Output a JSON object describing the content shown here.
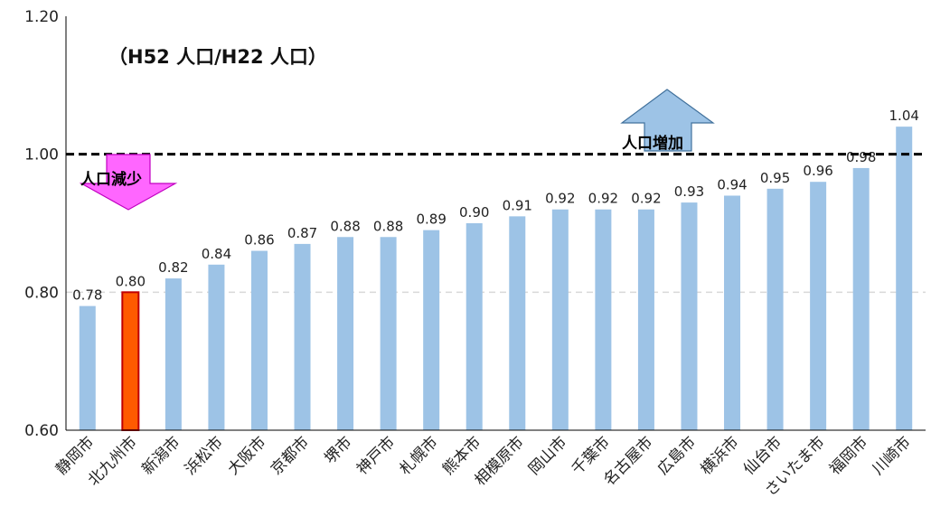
{
  "chart_data": {
    "type": "bar",
    "subtitle": "（H52 人口/H22 人口）",
    "categories": [
      "静岡市",
      "北九州市",
      "新潟市",
      "浜松市",
      "大阪市",
      "京都市",
      "堺市",
      "神戸市",
      "札幌市",
      "熊本市",
      "相模原市",
      "岡山市",
      "千葉市",
      "名古屋市",
      "広島市",
      "横浜市",
      "仙台市",
      "さいたま市",
      "福岡市",
      "川崎市"
    ],
    "values": [
      0.78,
      0.8,
      0.82,
      0.84,
      0.86,
      0.87,
      0.88,
      0.88,
      0.89,
      0.9,
      0.91,
      0.92,
      0.92,
      0.92,
      0.93,
      0.94,
      0.95,
      0.96,
      0.98,
      1.04
    ],
    "value_labels": [
      "0.78",
      "0.80",
      "0.82",
      "0.84",
      "0.86",
      "0.87",
      "0.88",
      "0.88",
      "0.89",
      "0.90",
      "0.91",
      "0.92",
      "0.92",
      "0.92",
      "0.93",
      "0.94",
      "0.95",
      "0.96",
      "0.98",
      "1.04"
    ],
    "highlight_index": 1,
    "ylim": [
      0.6,
      1.2
    ],
    "yticks": [
      0.6,
      0.8,
      1.0,
      1.2
    ],
    "ytick_labels": [
      "0.60",
      "0.80",
      "1.00",
      "1.20"
    ],
    "reference_line": {
      "value": 1.0,
      "style": "dashed"
    },
    "annotations": {
      "increase": "人口増加",
      "decrease": "人口減少"
    },
    "colors": {
      "bar": "#9dc3e6",
      "highlight_bar": "#ff5a00",
      "highlight_border": "#c00000",
      "increase_arrow": "#9dc3e6",
      "decrease_arrow": "#ff66ff",
      "reference_line": "#000000",
      "gridline": "#d9d9d9"
    }
  }
}
